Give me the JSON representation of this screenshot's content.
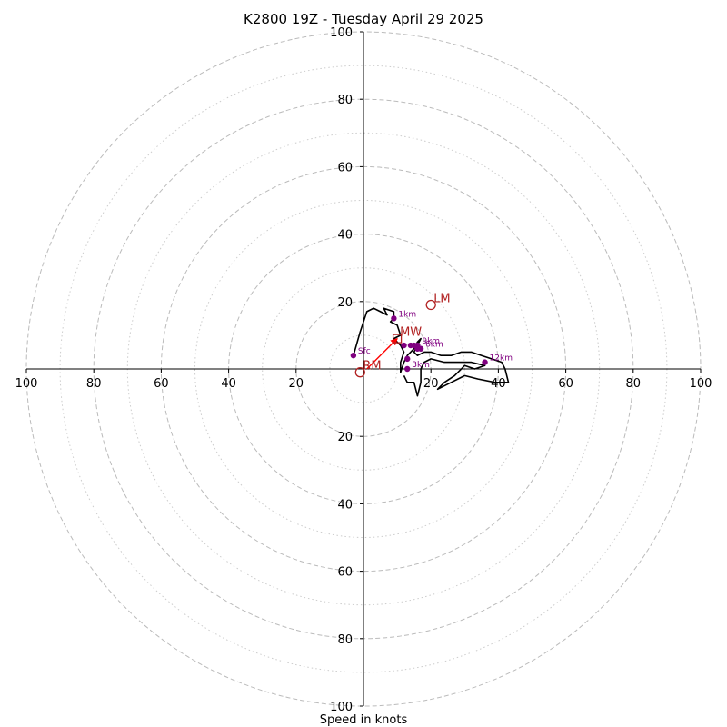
{
  "chart_data": {
    "type": "hodograph",
    "title": "K2800 19Z - Tuesday April 29 2025",
    "xlabel": "Speed in knots",
    "ylabel": "",
    "xlim": [
      -100,
      100
    ],
    "ylim": [
      -100,
      100
    ],
    "grid": true,
    "rings_major": [
      20,
      40,
      60,
      80,
      100
    ],
    "rings_minor": [
      10,
      30,
      50,
      70,
      90
    ],
    "x_tick_labels": [
      "100",
      "80",
      "60",
      "40",
      "20",
      "20",
      "40",
      "60",
      "80",
      "100"
    ],
    "y_tick_labels": [
      "100",
      "80",
      "60",
      "40",
      "20",
      "20",
      "40",
      "60",
      "80",
      "100"
    ],
    "colors": {
      "trace": "#000000",
      "height_points": "#800080",
      "motion": "#b22222",
      "shear_vector": "#ff0000",
      "grid": "#bbbbbb"
    },
    "hodograph_trace": [
      [
        -3,
        4
      ],
      [
        -1,
        11
      ],
      [
        1,
        17
      ],
      [
        3,
        18
      ],
      [
        5,
        17
      ],
      [
        7,
        16
      ],
      [
        6,
        18
      ],
      [
        9,
        17
      ],
      [
        9,
        15
      ],
      [
        8,
        14
      ],
      [
        10,
        13
      ],
      [
        11,
        10
      ],
      [
        9,
        9
      ],
      [
        10,
        8
      ],
      [
        11,
        7
      ],
      [
        12,
        5
      ],
      [
        11,
        2
      ],
      [
        11,
        0
      ],
      [
        11,
        -1
      ],
      [
        12,
        2
      ],
      [
        13,
        4
      ],
      [
        15,
        6
      ],
      [
        16,
        8
      ],
      [
        17,
        9
      ],
      [
        16,
        7
      ],
      [
        15,
        5
      ],
      [
        16,
        4
      ],
      [
        18,
        5
      ],
      [
        20,
        5
      ],
      [
        23,
        4
      ],
      [
        26,
        4
      ],
      [
        29,
        5
      ],
      [
        32,
        5
      ],
      [
        35,
        4
      ],
      [
        38,
        3
      ],
      [
        41,
        2
      ],
      [
        42,
        0
      ],
      [
        43,
        -4
      ],
      [
        39,
        -4
      ],
      [
        34,
        -3
      ],
      [
        30,
        -2
      ],
      [
        26,
        -4
      ],
      [
        22,
        -6
      ],
      [
        24,
        -4
      ],
      [
        27,
        -2
      ],
      [
        30,
        1
      ],
      [
        33,
        0
      ],
      [
        36,
        1
      ],
      [
        32,
        2
      ],
      [
        28,
        2
      ],
      [
        24,
        2
      ],
      [
        20,
        3
      ],
      [
        18,
        2
      ],
      [
        17,
        0
      ],
      [
        17,
        -2
      ],
      [
        17,
        -4
      ],
      [
        16,
        -8
      ],
      [
        15,
        -4
      ],
      [
        13,
        -4
      ],
      [
        12,
        -2
      ]
    ],
    "height_points": [
      {
        "label": "Sfc",
        "u": -3,
        "v": 4
      },
      {
        "label": "1km",
        "u": 9,
        "v": 15
      },
      {
        "label": "3km",
        "u": 13,
        "v": 0
      },
      {
        "label": "",
        "u": 13,
        "v": 3
      },
      {
        "label": "",
        "u": 12,
        "v": 7
      },
      {
        "label": "",
        "u": 14,
        "v": 7
      },
      {
        "label": "",
        "u": 15,
        "v": 7
      },
      {
        "label": "",
        "u": 16,
        "v": 6
      },
      {
        "label": "9km",
        "u": 16,
        "v": 7
      },
      {
        "label": "6km",
        "u": 17,
        "v": 6
      },
      {
        "label": "12km",
        "u": 36,
        "v": 2
      }
    ],
    "storm_motion": [
      {
        "label": "LM",
        "u": 20,
        "v": 19,
        "marker": "circle"
      },
      {
        "label": "RM",
        "u": -1,
        "v": -1,
        "marker": "circle"
      },
      {
        "label": "MW",
        "u": 10,
        "v": 9,
        "marker": "square"
      }
    ],
    "shear_vector": {
      "from": [
        1,
        0
      ],
      "to": [
        10,
        9
      ]
    }
  }
}
